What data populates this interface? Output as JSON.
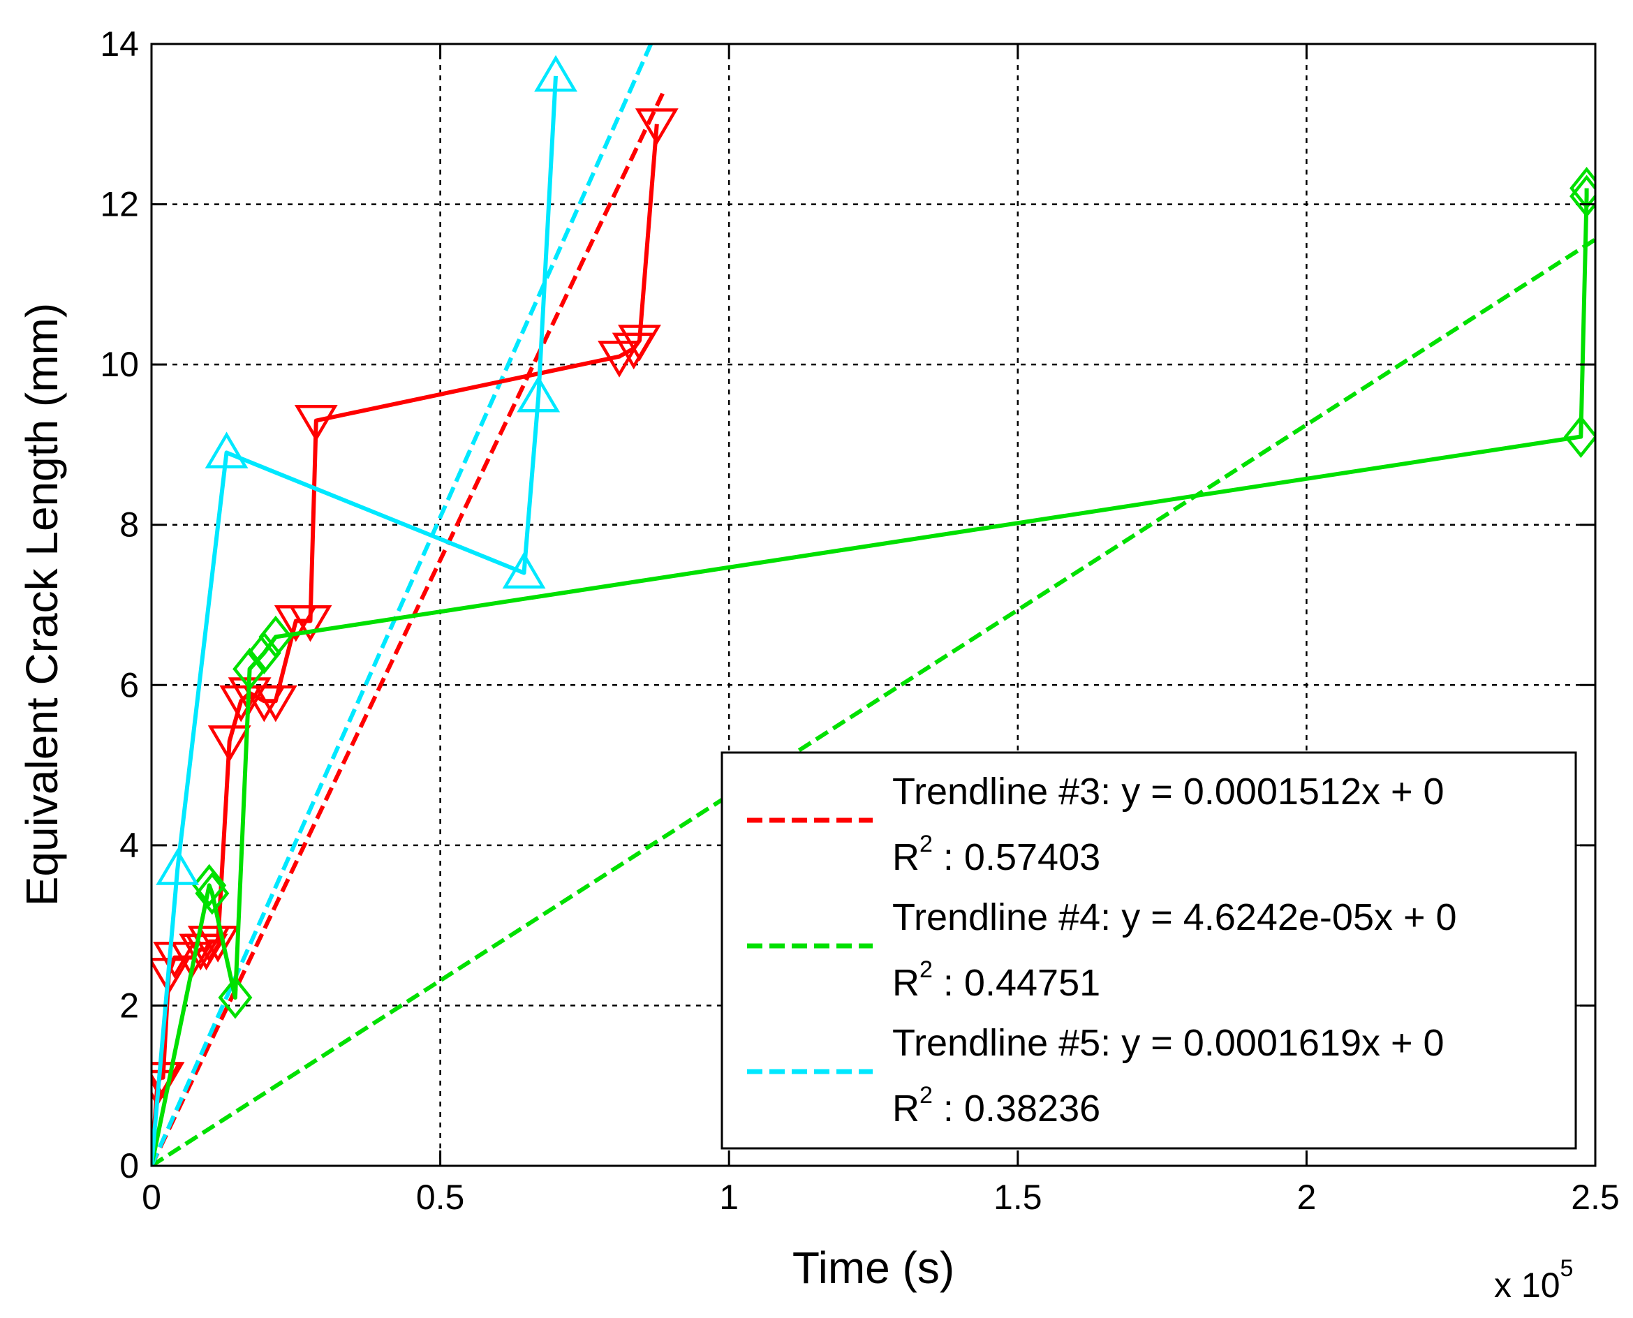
{
  "chart_data": {
    "type": "line",
    "xlabel": "Time (s)",
    "ylabel": "Equivalent Crack Length (mm)",
    "x_exponent_label": "x 10",
    "x_exponent_power": "5",
    "xlim": [
      0,
      250000
    ],
    "ylim": [
      0,
      14
    ],
    "grid": true,
    "xticks": [
      0,
      50000,
      100000,
      150000,
      200000,
      250000
    ],
    "xtick_labels": [
      "0",
      "0.5",
      "1",
      "1.5",
      "2",
      "2.5"
    ],
    "yticks": [
      0,
      2,
      4,
      6,
      8,
      10,
      12,
      14
    ],
    "ytick_labels": [
      "0",
      "2",
      "4",
      "6",
      "8",
      "10",
      "12",
      "14"
    ],
    "legend_position": "lower-right",
    "series": [
      {
        "color": "#ff0000",
        "marker": "triangle-down",
        "x": [
          0,
          1000,
          1500,
          2000,
          3000,
          4000,
          7000,
          8500,
          9500,
          10000,
          11500,
          13500,
          15500,
          17000,
          19500,
          21500,
          25000,
          27500,
          28500,
          81000,
          83500,
          84500,
          87500
        ],
        "y": [
          0,
          1.0,
          1.1,
          1.1,
          2.4,
          2.6,
          2.6,
          2.7,
          2.7,
          2.8,
          2.8,
          5.3,
          5.8,
          5.9,
          5.8,
          5.8,
          6.8,
          6.8,
          9.3,
          10.1,
          10.2,
          10.3,
          13.0
        ]
      },
      {
        "color": "#00e000",
        "marker": "diamond",
        "x": [
          0,
          10000,
          10500,
          14500,
          17000,
          19500,
          21500,
          247500,
          248500,
          248500
        ],
        "y": [
          0,
          3.5,
          3.4,
          2.1,
          6.2,
          6.4,
          6.6,
          9.1,
          12.1,
          12.2
        ]
      },
      {
        "color": "#00e8ff",
        "marker": "triangle-up",
        "x": [
          0,
          4500,
          13000,
          64500,
          67000,
          70000
        ],
        "y": [
          0,
          3.7,
          8.9,
          7.4,
          9.6,
          13.6
        ]
      }
    ],
    "trendlines": [
      {
        "color": "#ff0000",
        "slope": 0.0001512,
        "x_end": 88500,
        "label": "Trendline #3: y = 0.0001512x + 0",
        "r2_label": "R",
        "r2_value": " : 0.57403"
      },
      {
        "color": "#00e000",
        "slope": 4.6242e-05,
        "x_end": 250000,
        "label": "Trendline #4: y = 4.6242e-05x + 0",
        "r2_label": "R",
        "r2_value": " : 0.44751"
      },
      {
        "color": "#00e8ff",
        "slope": 0.0001619,
        "x_end": 86500,
        "label": "Trendline #5: y = 0.0001619x + 0",
        "r2_label": "R",
        "r2_value": " : 0.38236"
      }
    ],
    "r2_superscript": "2"
  }
}
